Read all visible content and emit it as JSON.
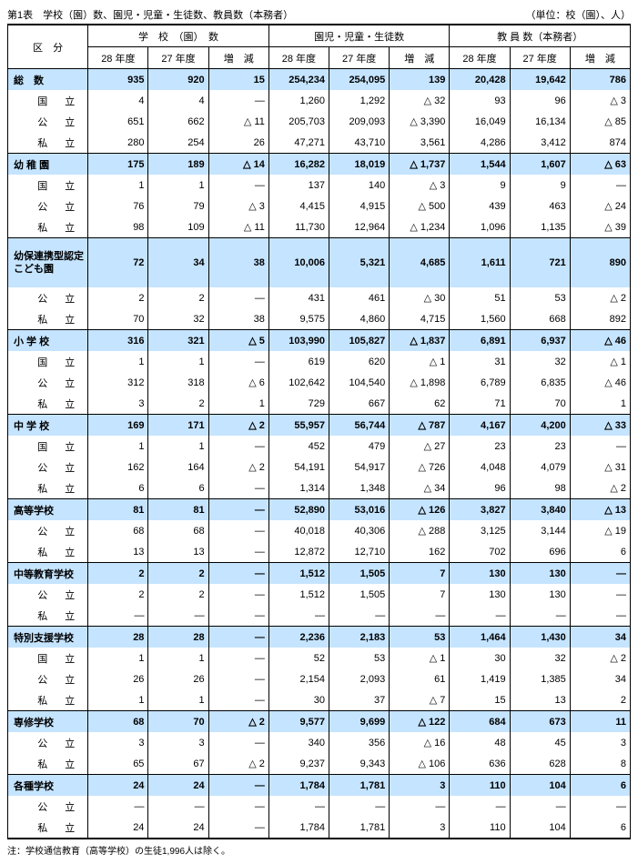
{
  "title": "第1表　学校（園）数、園児・児童・生徒数、教員数（本務者）",
  "unit": "（単位：校（園）、人）",
  "note": "注：学校通信教育（高等学校）の生徒1,996人は除く。",
  "headers": {
    "kubun": "区　分",
    "g1": "学　校　（園）　数",
    "g2": "園児・児童・生徒数",
    "g3": "教 員 数（本務者）",
    "y28": "28 年度",
    "y27": "27 年度",
    "zg": "増　減"
  },
  "sections": [
    {
      "label": "総　数",
      "rows": [
        {
          "k": "",
          "v": [
            "935",
            "920",
            "15",
            "254,234",
            "254,095",
            "139",
            "20,428",
            "19,642",
            "786"
          ],
          "hl": true
        },
        {
          "k": "国　立",
          "v": [
            "4",
            "4",
            "―",
            "1,260",
            "1,292",
            "△ 32",
            "93",
            "96",
            "△ 3"
          ]
        },
        {
          "k": "公　立",
          "v": [
            "651",
            "662",
            "△ 11",
            "205,703",
            "209,093",
            "△ 3,390",
            "16,049",
            "16,134",
            "△ 85"
          ]
        },
        {
          "k": "私　立",
          "v": [
            "280",
            "254",
            "26",
            "47,271",
            "43,710",
            "3,561",
            "4,286",
            "3,412",
            "874"
          ]
        }
      ]
    },
    {
      "label": "幼 稚 園",
      "rows": [
        {
          "k": "",
          "v": [
            "175",
            "189",
            "△ 14",
            "16,282",
            "18,019",
            "△ 1,737",
            "1,544",
            "1,607",
            "△ 63"
          ],
          "hl": true
        },
        {
          "k": "国　立",
          "v": [
            "1",
            "1",
            "―",
            "137",
            "140",
            "△ 3",
            "9",
            "9",
            "―"
          ]
        },
        {
          "k": "公　立",
          "v": [
            "76",
            "79",
            "△ 3",
            "4,415",
            "4,915",
            "△ 500",
            "439",
            "463",
            "△ 24"
          ]
        },
        {
          "k": "私　立",
          "v": [
            "98",
            "109",
            "△ 11",
            "11,730",
            "12,964",
            "△ 1,234",
            "1,096",
            "1,135",
            "△ 39"
          ]
        }
      ]
    },
    {
      "label": "幼保連携型認定こども園",
      "rows": [
        {
          "k": "",
          "v": [
            "72",
            "34",
            "38",
            "10,006",
            "5,321",
            "4,685",
            "1,611",
            "721",
            "890"
          ],
          "hl": true,
          "tall": true
        },
        {
          "k": "公　立",
          "v": [
            "2",
            "2",
            "―",
            "431",
            "461",
            "△ 30",
            "51",
            "53",
            "△ 2"
          ]
        },
        {
          "k": "私　立",
          "v": [
            "70",
            "32",
            "38",
            "9,575",
            "4,860",
            "4,715",
            "1,560",
            "668",
            "892"
          ]
        }
      ]
    },
    {
      "label": "小 学 校",
      "rows": [
        {
          "k": "",
          "v": [
            "316",
            "321",
            "△ 5",
            "103,990",
            "105,827",
            "△ 1,837",
            "6,891",
            "6,937",
            "△ 46"
          ],
          "hl": true
        },
        {
          "k": "国　立",
          "v": [
            "1",
            "1",
            "―",
            "619",
            "620",
            "△ 1",
            "31",
            "32",
            "△ 1"
          ]
        },
        {
          "k": "公　立",
          "v": [
            "312",
            "318",
            "△ 6",
            "102,642",
            "104,540",
            "△ 1,898",
            "6,789",
            "6,835",
            "△ 46"
          ]
        },
        {
          "k": "私　立",
          "v": [
            "3",
            "2",
            "1",
            "729",
            "667",
            "62",
            "71",
            "70",
            "1"
          ]
        }
      ]
    },
    {
      "label": "中 学 校",
      "rows": [
        {
          "k": "",
          "v": [
            "169",
            "171",
            "△ 2",
            "55,957",
            "56,744",
            "△ 787",
            "4,167",
            "4,200",
            "△ 33"
          ],
          "hl": true
        },
        {
          "k": "国　立",
          "v": [
            "1",
            "1",
            "―",
            "452",
            "479",
            "△ 27",
            "23",
            "23",
            "―"
          ]
        },
        {
          "k": "公　立",
          "v": [
            "162",
            "164",
            "△ 2",
            "54,191",
            "54,917",
            "△ 726",
            "4,048",
            "4,079",
            "△ 31"
          ]
        },
        {
          "k": "私　立",
          "v": [
            "6",
            "6",
            "―",
            "1,314",
            "1,348",
            "△ 34",
            "96",
            "98",
            "△ 2"
          ]
        }
      ]
    },
    {
      "label": "高等学校",
      "rows": [
        {
          "k": "",
          "v": [
            "81",
            "81",
            "―",
            "52,890",
            "53,016",
            "△ 126",
            "3,827",
            "3,840",
            "△ 13"
          ],
          "hl": true
        },
        {
          "k": "公　立",
          "v": [
            "68",
            "68",
            "―",
            "40,018",
            "40,306",
            "△ 288",
            "3,125",
            "3,144",
            "△ 19"
          ]
        },
        {
          "k": "私　立",
          "v": [
            "13",
            "13",
            "―",
            "12,872",
            "12,710",
            "162",
            "702",
            "696",
            "6"
          ]
        }
      ]
    },
    {
      "label": "中等教育学校",
      "rows": [
        {
          "k": "",
          "v": [
            "2",
            "2",
            "―",
            "1,512",
            "1,505",
            "7",
            "130",
            "130",
            "―"
          ],
          "hl": true
        },
        {
          "k": "公　立",
          "v": [
            "2",
            "2",
            "―",
            "1,512",
            "1,505",
            "7",
            "130",
            "130",
            "―"
          ]
        },
        {
          "k": "私　立",
          "v": [
            "―",
            "―",
            "―",
            "―",
            "―",
            "―",
            "―",
            "―",
            "―"
          ]
        }
      ]
    },
    {
      "label": "特別支援学校",
      "rows": [
        {
          "k": "",
          "v": [
            "28",
            "28",
            "―",
            "2,236",
            "2,183",
            "53",
            "1,464",
            "1,430",
            "34"
          ],
          "hl": true
        },
        {
          "k": "国　立",
          "v": [
            "1",
            "1",
            "―",
            "52",
            "53",
            "△ 1",
            "30",
            "32",
            "△ 2"
          ]
        },
        {
          "k": "公　立",
          "v": [
            "26",
            "26",
            "―",
            "2,154",
            "2,093",
            "61",
            "1,419",
            "1,385",
            "34"
          ]
        },
        {
          "k": "私　立",
          "v": [
            "1",
            "1",
            "―",
            "30",
            "37",
            "△ 7",
            "15",
            "13",
            "2"
          ]
        }
      ]
    },
    {
      "label": "専修学校",
      "rows": [
        {
          "k": "",
          "v": [
            "68",
            "70",
            "△ 2",
            "9,577",
            "9,699",
            "△ 122",
            "684",
            "673",
            "11"
          ],
          "hl": true
        },
        {
          "k": "公　立",
          "v": [
            "3",
            "3",
            "―",
            "340",
            "356",
            "△ 16",
            "48",
            "45",
            "3"
          ]
        },
        {
          "k": "私　立",
          "v": [
            "65",
            "67",
            "△ 2",
            "9,237",
            "9,343",
            "△ 106",
            "636",
            "628",
            "8"
          ]
        }
      ]
    },
    {
      "label": "各種学校",
      "rows": [
        {
          "k": "",
          "v": [
            "24",
            "24",
            "―",
            "1,784",
            "1,781",
            "3",
            "110",
            "104",
            "6"
          ],
          "hl": true
        },
        {
          "k": "公　立",
          "v": [
            "―",
            "―",
            "―",
            "―",
            "―",
            "―",
            "―",
            "―",
            "―"
          ]
        },
        {
          "k": "私　立",
          "v": [
            "24",
            "24",
            "―",
            "1,784",
            "1,781",
            "3",
            "110",
            "104",
            "6"
          ]
        }
      ]
    }
  ]
}
